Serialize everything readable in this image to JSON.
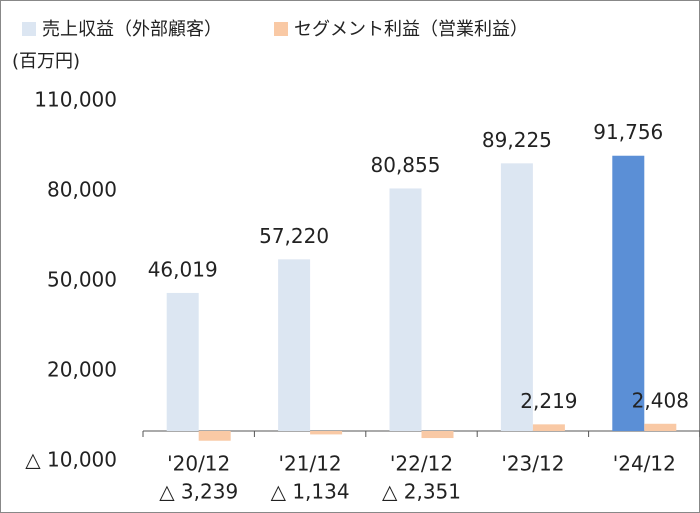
{
  "chart_data": {
    "type": "bar",
    "unit_label": "(百万円)",
    "categories": [
      "'20/12",
      "'21/12",
      "'22/12",
      "'23/12",
      "'24/12"
    ],
    "series": [
      {
        "name": "売上収益（外部顧客）",
        "color": "#dce6f2",
        "colors": [
          "#dce6f2",
          "#dce6f2",
          "#dce6f2",
          "#dce6f2",
          "#5b8fd6"
        ],
        "values": [
          46019,
          57220,
          80855,
          89225,
          91756
        ],
        "value_labels": [
          "46,019",
          "57,220",
          "80,855",
          "89,225",
          "91,756"
        ]
      },
      {
        "name": "セグメント利益（営業利益）",
        "color": "#f9c9a5",
        "values": [
          -3239,
          -1134,
          -2351,
          2219,
          2408
        ],
        "value_labels": [
          "△ 3,239",
          "△ 1,134",
          "△ 2,351",
          "2,219",
          "2,408"
        ]
      }
    ],
    "ylim": [
      -10000,
      110000
    ],
    "yticks": [
      {
        "value": -10000,
        "label": "△ 10,000"
      },
      {
        "value": 20000,
        "label": "20,000"
      },
      {
        "value": 50000,
        "label": "50,000"
      },
      {
        "value": 80000,
        "label": "80,000"
      },
      {
        "value": 110000,
        "label": "110,000"
      }
    ],
    "grid": false
  }
}
